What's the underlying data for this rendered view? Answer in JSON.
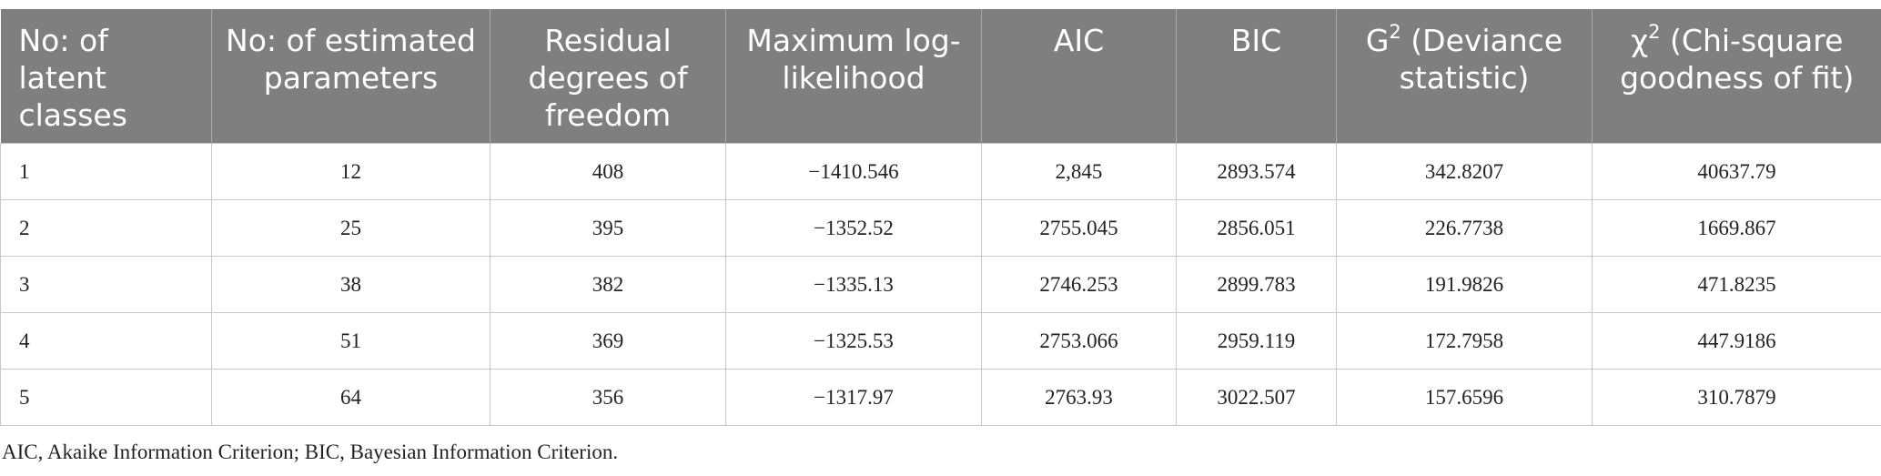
{
  "table": {
    "header": [
      "No: of latent classes",
      "No: of estimated parameters",
      "Residual degrees of freedom",
      "Maximum log-likelihood",
      "AIC",
      "BIC",
      {
        "symbol": "G",
        "superscript": "2",
        "text": "(Deviance statistic)"
      },
      {
        "symbol": "χ",
        "superscript": "2",
        "text": "(Chi-square goodness of fit)"
      }
    ],
    "rows": [
      [
        "1",
        "12",
        "408",
        "−1410.546",
        "2,845",
        "2893.574",
        "342.8207",
        "40637.79"
      ],
      [
        "2",
        "25",
        "395",
        "−1352.52",
        "2755.045",
        "2856.051",
        "226.7738",
        "1669.867"
      ],
      [
        "3",
        "38",
        "382",
        "−1335.13",
        "2746.253",
        "2899.783",
        "191.9826",
        "471.8235"
      ],
      [
        "4",
        "51",
        "369",
        "−1325.53",
        "2753.066",
        "2959.119",
        "172.7958",
        "447.9186"
      ],
      [
        "5",
        "64",
        "356",
        "−1317.97",
        "2763.93",
        "3022.507",
        "157.6596",
        "310.7879"
      ]
    ],
    "footnote": "AIC, Akaike Information Criterion; BIC, Bayesian Information Criterion."
  }
}
